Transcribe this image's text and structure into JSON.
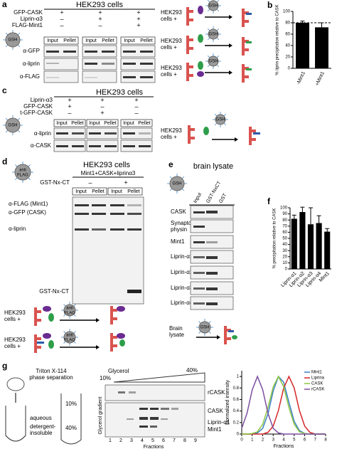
{
  "panel_a": {
    "label": "a",
    "title": "HEK293 cells",
    "conditions": [
      {
        "name": "GFP-CASK",
        "signs": [
          "+",
          "+",
          "+"
        ]
      },
      {
        "name": "Liprin-α3",
        "signs": [
          "–",
          "+",
          "+"
        ]
      },
      {
        "name": "FLAG-Mint1",
        "signs": [
          "–",
          "–",
          "+"
        ]
      }
    ],
    "lanes": [
      [
        "Input",
        "Pellet"
      ],
      [
        "Input",
        "Pellet"
      ],
      [
        "Input",
        "Pellet"
      ]
    ],
    "blots": [
      "α-GFP",
      "α-liprin",
      "α-FLAG"
    ],
    "bead": "GSH",
    "schematics": [
      [
        "HEK293",
        "cells +"
      ],
      [
        "HEK293",
        "cells +"
      ],
      [
        "HEK293",
        "cells +"
      ]
    ]
  },
  "panel_b": {
    "label": "b",
    "type": "bar",
    "categories": [
      "-Mint1",
      "+Mint1"
    ],
    "values": [
      80,
      72
    ],
    "errors": [
      3,
      8
    ],
    "color": "#000000",
    "ylabel": "% liprin precipitation relative to CASK",
    "ylim": [
      0,
      100
    ],
    "yticks": [
      0,
      20,
      40,
      60,
      80,
      100
    ],
    "reference_line": 80
  },
  "panel_c": {
    "label": "c",
    "title": "HEK293 cells",
    "conditions": [
      {
        "name": "Liprin-α3",
        "signs": [
          "+",
          "+",
          "+"
        ]
      },
      {
        "name": "GFP-CASK",
        "signs": [
          "+",
          "–",
          "–"
        ]
      },
      {
        "name": "t-GFP-CASK",
        "signs": [
          "–",
          "+",
          "–"
        ]
      }
    ],
    "lanes": [
      [
        "Input",
        "Pellet"
      ],
      [
        "Input",
        "Pellet"
      ],
      [
        "Input",
        "Pellet"
      ]
    ],
    "blots": [
      "α-liprin",
      "α-CASK"
    ],
    "bead": "GSH",
    "schematic": [
      "HEK293",
      "cells +"
    ]
  },
  "panel_d": {
    "label": "d",
    "title": "HEK293 cells",
    "header": "Mint1+CASK+liprinα3",
    "condition": {
      "name": "GST-Nx-CT",
      "signs": [
        "–",
        "+"
      ]
    },
    "lanes": [
      [
        "Input",
        "Pellet"
      ],
      [
        "Input",
        "Pellet"
      ]
    ],
    "blots": [
      "α-FLAG (Mint1)",
      "α-GFP (CASK)",
      "α-liprin",
      "GST-Nx-CT"
    ],
    "bead": [
      "anti",
      "FLAG"
    ],
    "schematics": [
      [
        "HEK293",
        "cells +"
      ],
      [
        "HEK293",
        "cells +"
      ]
    ]
  },
  "panel_e": {
    "label": "e",
    "title": "brain lysate",
    "bead": "GSH",
    "columns": [
      "Input",
      "GST-NxCT",
      "GST"
    ],
    "rows": [
      "CASK",
      [
        "Synapto-",
        "physin"
      ],
      "Mint1",
      "Liprin-α1",
      "Liprin-α2",
      "Liprin-α3",
      "Liprin-α4"
    ],
    "footer": [
      "Brain",
      "lysate"
    ]
  },
  "panel_f": {
    "label": "f",
    "type": "bar",
    "categories": [
      "Liprin-α1",
      "Liprin-α2",
      "Liprin-α3",
      "Liprin-α4",
      "Mint1"
    ],
    "values": [
      82,
      93,
      73,
      75,
      61
    ],
    "errors": [
      6,
      8,
      27,
      12,
      5
    ],
    "color": "#000000",
    "ylabel": "% precipitation relative to CASK",
    "ylim": [
      0,
      100
    ],
    "yticks": [
      0,
      10,
      20,
      30,
      40,
      50,
      60,
      70,
      80,
      90,
      100
    ]
  },
  "panel_g": {
    "label": "g",
    "method": [
      "Triton X-114",
      "phase separation"
    ],
    "phases": [
      "aqueous",
      "detergent-",
      "insoluble"
    ],
    "tube": [
      "10%",
      "40%"
    ],
    "gradient_header": [
      "Glycerol",
      "10%",
      "40%"
    ],
    "gradient_axis": "Glycerol gradient",
    "blots": [
      "rCASK",
      "CASK",
      "Liprin-α1",
      "Mint1"
    ],
    "lanes": [
      1,
      2,
      3,
      4,
      5,
      6,
      7,
      8,
      9
    ],
    "lanes_label": "Fractions",
    "intensity_chart": {
      "type": "line",
      "ylabel": "Normalized intensity",
      "xlabel": "Fractions",
      "x": [
        0,
        0.5,
        1,
        1.5,
        2,
        2.5,
        3,
        3.5,
        4,
        4.5,
        5,
        5.5,
        6,
        6.5,
        7,
        7.5,
        8
      ],
      "xlim": [
        0,
        8
      ],
      "xticks": [
        0,
        1,
        2,
        3,
        4,
        5,
        6,
        7,
        8
      ],
      "ylim": [
        0,
        1.1
      ],
      "yticks": [
        0,
        0.2,
        0.4,
        0.6,
        0.8,
        1
      ],
      "legend": "upper right",
      "series": [
        {
          "name": "Mint1",
          "color": "#3a7fc1",
          "values": [
            0,
            0,
            0,
            0.02,
            0.1,
            0.35,
            0.75,
            1,
            0.9,
            0.55,
            0.22,
            0.06,
            0.01,
            0,
            0,
            0,
            0
          ]
        },
        {
          "name": "Liprina",
          "color": "#d62728",
          "values": [
            0,
            0,
            0,
            0,
            0,
            0.03,
            0.14,
            0.41,
            0.8,
            1,
            0.8,
            0.41,
            0.14,
            0.03,
            0,
            0,
            0
          ]
        },
        {
          "name": "CASK",
          "color": "#8cc63f",
          "values": [
            0,
            0,
            0.01,
            0.04,
            0.17,
            0.46,
            0.82,
            1,
            0.82,
            0.46,
            0.17,
            0.04,
            0.01,
            0,
            0,
            0,
            0
          ]
        },
        {
          "name": "rCASK",
          "color": "#7b4fa0",
          "values": [
            0.1,
            0.36,
            0.77,
            1,
            0.77,
            0.36,
            0.1,
            0.02,
            0,
            0,
            0,
            0,
            0,
            0,
            0,
            0,
            0
          ]
        }
      ]
    }
  }
}
